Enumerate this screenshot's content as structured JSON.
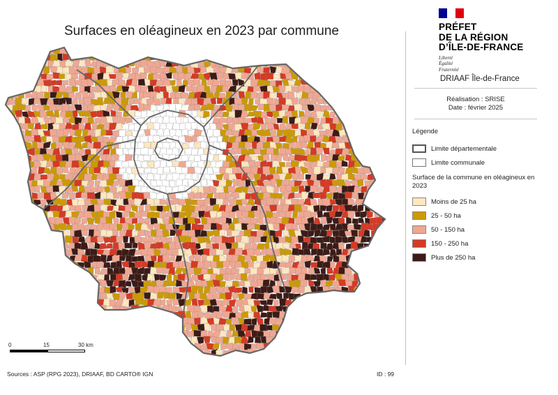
{
  "title": "Surfaces en oléagineux en 2023 par commune",
  "logo": {
    "flag_colors": [
      "#000091",
      "#ffffff",
      "#e1000f"
    ],
    "lines": [
      "PRÉFET",
      "DE LA RÉGION",
      "D’ÎLE-DE-FRANCE"
    ],
    "motto": [
      "Liberté",
      "Égalité",
      "Fraternité"
    ]
  },
  "agency": "DRIAAF Île-de-France",
  "realisation": "Réalisation : SRISE",
  "date": "Date : février 2025",
  "legend": {
    "title": "Légende",
    "boundaries": [
      {
        "label": "Limite départementale",
        "style": "thick"
      },
      {
        "label": "Limite communale",
        "style": "thin"
      }
    ],
    "subtitle": "Surface de la commune en oléagineux en 2023",
    "classes": [
      {
        "label": "Moins de 25 ha",
        "color": "#fde7bf"
      },
      {
        "label": "25 - 50 ha",
        "color": "#cc9a06"
      },
      {
        "label": "50 - 150 ha",
        "color": "#f0a792"
      },
      {
        "label": "150 - 250 ha",
        "color": "#d63a24"
      },
      {
        "label": "Plus de 250 ha",
        "color": "#3d1b16"
      }
    ]
  },
  "scale_bar": {
    "labels": [
      "0",
      "15",
      "30 km"
    ]
  },
  "sources": "Sources : ASP (RPG 2023), DRIAAF, BD CARTO® IGN",
  "id_label": "ID : 99"
}
